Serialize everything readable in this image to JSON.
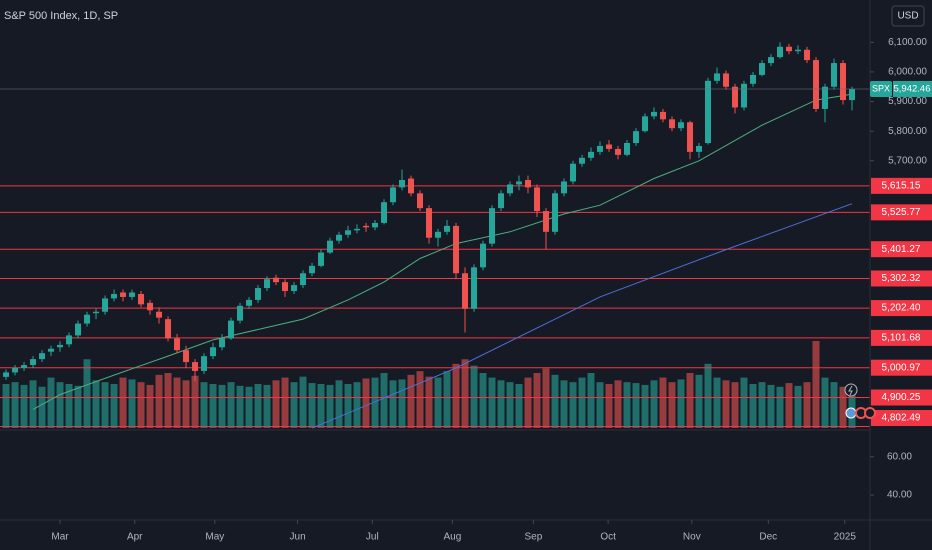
{
  "chart_data": {
    "type": "candlestick",
    "title": "S&P 500 Index, 1D, SP",
    "currency": "USD",
    "symbol": "SPX",
    "last_price": {
      "value": 5942.46,
      "label": "5,942.46"
    },
    "up_color": "#26a69a",
    "down_color": "#ef5350",
    "ylim": [
      4800,
      6243
    ],
    "xlim": [
      -0.67,
      96
    ],
    "yticks": [
      {
        "value": 6100,
        "label": "6,100.00"
      },
      {
        "value": 6000,
        "label": "6,000.00"
      },
      {
        "value": 5900,
        "label": "5,900.00"
      },
      {
        "value": 5800,
        "label": "5,800.00"
      },
      {
        "value": 5700,
        "label": "5,700.00"
      }
    ],
    "xticks": [
      {
        "value": 6,
        "label": "Mar"
      },
      {
        "value": 14.3,
        "label": "Apr"
      },
      {
        "value": 23.2,
        "label": "May"
      },
      {
        "value": 32.4,
        "label": "Jun"
      },
      {
        "value": 40.7,
        "label": "Jul"
      },
      {
        "value": 49.6,
        "label": "Aug"
      },
      {
        "value": 58.6,
        "label": "Sep"
      },
      {
        "value": 66.9,
        "label": "Oct"
      },
      {
        "value": 76.2,
        "label": "Nov"
      },
      {
        "value": 84.7,
        "label": "Dec"
      },
      {
        "value": 93.2,
        "label": "2025"
      }
    ],
    "levels_color": "#f23645",
    "levels": [
      {
        "value": 5615.15,
        "label": "5,615.15"
      },
      {
        "value": 5525.77,
        "label": "5,525.77"
      },
      {
        "value": 5401.27,
        "label": "5,401.27"
      },
      {
        "value": 5302.32,
        "label": "5,302.32"
      },
      {
        "value": 5202.4,
        "label": "5,202.40"
      },
      {
        "value": 5101.68,
        "label": "5,101.68"
      },
      {
        "value": 5000.97,
        "label": "5,000.97"
      },
      {
        "value": 4900.25,
        "label": "4,900.25"
      },
      {
        "value": 4802.49,
        "label": "4,802.49"
      }
    ],
    "candles": [
      [
        4970,
        4995,
        4960,
        4985
      ],
      [
        4985,
        5010,
        4975,
        5000
      ],
      [
        5000,
        5020,
        4990,
        5010
      ],
      [
        5010,
        5040,
        5000,
        5030
      ],
      [
        5030,
        5060,
        5020,
        5050
      ],
      [
        5055,
        5075,
        5040,
        5065
      ],
      [
        5070,
        5090,
        5055,
        5078
      ],
      [
        5080,
        5120,
        5070,
        5110
      ],
      [
        5110,
        5160,
        5100,
        5150
      ],
      [
        5150,
        5190,
        5140,
        5180
      ],
      [
        5185,
        5200,
        5165,
        5190
      ],
      [
        5190,
        5245,
        5180,
        5235
      ],
      [
        5235,
        5265,
        5225,
        5250
      ],
      [
        5255,
        5265,
        5225,
        5240
      ],
      [
        5240,
        5265,
        5230,
        5255
      ],
      [
        5250,
        5260,
        5205,
        5215
      ],
      [
        5220,
        5230,
        5180,
        5195
      ],
      [
        5190,
        5205,
        5150,
        5170
      ],
      [
        5165,
        5175,
        5090,
        5100
      ],
      [
        5100,
        5115,
        5050,
        5060
      ],
      [
        5060,
        5075,
        5000,
        5020
      ],
      [
        5020,
        5030,
        4955,
        4990
      ],
      [
        4990,
        5050,
        4980,
        5040
      ],
      [
        5040,
        5085,
        5030,
        5070
      ],
      [
        5070,
        5115,
        5060,
        5100
      ],
      [
        5100,
        5170,
        5095,
        5160
      ],
      [
        5160,
        5220,
        5150,
        5210
      ],
      [
        5210,
        5240,
        5200,
        5230
      ],
      [
        5230,
        5280,
        5220,
        5270
      ],
      [
        5270,
        5310,
        5260,
        5300
      ],
      [
        5305,
        5315,
        5280,
        5290
      ],
      [
        5290,
        5300,
        5240,
        5260
      ],
      [
        5260,
        5290,
        5250,
        5280
      ],
      [
        5280,
        5330,
        5270,
        5320
      ],
      [
        5320,
        5355,
        5310,
        5345
      ],
      [
        5345,
        5400,
        5340,
        5390
      ],
      [
        5390,
        5440,
        5385,
        5430
      ],
      [
        5430,
        5460,
        5420,
        5450
      ],
      [
        5450,
        5480,
        5440,
        5465
      ],
      [
        5465,
        5485,
        5455,
        5470
      ],
      [
        5480,
        5490,
        5460,
        5475
      ],
      [
        5475,
        5500,
        5465,
        5490
      ],
      [
        5490,
        5570,
        5485,
        5560
      ],
      [
        5560,
        5620,
        5550,
        5610
      ],
      [
        5610,
        5670,
        5600,
        5635
      ],
      [
        5640,
        5650,
        5580,
        5590
      ],
      [
        5590,
        5600,
        5530,
        5540
      ],
      [
        5540,
        5550,
        5420,
        5440
      ],
      [
        5440,
        5470,
        5410,
        5460
      ],
      [
        5460,
        5500,
        5450,
        5480
      ],
      [
        5480,
        5490,
        5300,
        5320
      ],
      [
        5320,
        5340,
        5120,
        5200
      ],
      [
        5200,
        5350,
        5190,
        5340
      ],
      [
        5340,
        5430,
        5330,
        5420
      ],
      [
        5420,
        5550,
        5410,
        5540
      ],
      [
        5540,
        5600,
        5530,
        5590
      ],
      [
        5590,
        5630,
        5580,
        5620
      ],
      [
        5620,
        5650,
        5600,
        5630
      ],
      [
        5635,
        5650,
        5590,
        5610
      ],
      [
        5610,
        5620,
        5510,
        5530
      ],
      [
        5530,
        5540,
        5400,
        5460
      ],
      [
        5460,
        5600,
        5450,
        5590
      ],
      [
        5590,
        5640,
        5580,
        5630
      ],
      [
        5630,
        5700,
        5620,
        5690
      ],
      [
        5690,
        5720,
        5680,
        5710
      ],
      [
        5710,
        5745,
        5700,
        5730
      ],
      [
        5730,
        5765,
        5720,
        5750
      ],
      [
        5755,
        5770,
        5730,
        5740
      ],
      [
        5740,
        5750,
        5705,
        5720
      ],
      [
        5720,
        5770,
        5715,
        5760
      ],
      [
        5760,
        5810,
        5750,
        5800
      ],
      [
        5800,
        5860,
        5795,
        5850
      ],
      [
        5850,
        5880,
        5840,
        5865
      ],
      [
        5865,
        5875,
        5830,
        5840
      ],
      [
        5840,
        5850,
        5800,
        5810
      ],
      [
        5810,
        5840,
        5800,
        5830
      ],
      [
        5830,
        5835,
        5705,
        5730
      ],
      [
        5730,
        5760,
        5710,
        5750
      ],
      [
        5760,
        5980,
        5755,
        5970
      ],
      [
        5970,
        6015,
        5960,
        5995
      ],
      [
        5995,
        6005,
        5940,
        5950
      ],
      [
        5950,
        5960,
        5860,
        5880
      ],
      [
        5880,
        5970,
        5870,
        5960
      ],
      [
        5960,
        6000,
        5950,
        5990
      ],
      [
        5990,
        6040,
        5985,
        6030
      ],
      [
        6030,
        6060,
        6020,
        6050
      ],
      [
        6050,
        6100,
        6045,
        6085
      ],
      [
        6085,
        6095,
        6060,
        6070
      ],
      [
        6070,
        6090,
        6060,
        6075
      ],
      [
        6075,
        6085,
        6030,
        6040
      ],
      [
        6040,
        6050,
        5865,
        5875
      ],
      [
        5875,
        5960,
        5830,
        5950
      ],
      [
        5950,
        6045,
        5940,
        6030
      ],
      [
        6030,
        6040,
        5890,
        5905
      ],
      [
        5905,
        5950,
        5870,
        5942.46
      ]
    ],
    "vlim": [
      0,
      120
    ],
    "volume": [
      48,
      50,
      47,
      52,
      45,
      55,
      50,
      48,
      46,
      75,
      52,
      50,
      48,
      55,
      53,
      50,
      47,
      58,
      60,
      55,
      52,
      57,
      50,
      48,
      47,
      50,
      46,
      45,
      48,
      47,
      52,
      55,
      50,
      56,
      49,
      48,
      47,
      52,
      48,
      50,
      54,
      55,
      60,
      52,
      53,
      58,
      62,
      56,
      55,
      62,
      70,
      75,
      68,
      60,
      55,
      52,
      50,
      48,
      55,
      60,
      65,
      58,
      52,
      50,
      55,
      60,
      50,
      48,
      52,
      50,
      49,
      47,
      52,
      55,
      50,
      53,
      60,
      58,
      70,
      55,
      52,
      50,
      55,
      48,
      50,
      47,
      45,
      49,
      46,
      50,
      95,
      55,
      50,
      45,
      40
    ],
    "ma_fast": {
      "color": "#4caf80",
      "x": [
        3,
        6,
        12,
        18,
        23,
        28,
        33,
        38,
        42,
        46,
        50,
        56,
        62,
        66,
        72,
        77,
        84,
        90,
        94
      ],
      "values": [
        4860,
        4910,
        4976,
        5040,
        5095,
        5130,
        5165,
        5230,
        5290,
        5370,
        5420,
        5460,
        5520,
        5550,
        5640,
        5700,
        5820,
        5905,
        5925
      ]
    },
    "ma_slow": {
      "color": "#4f6fd6",
      "x": [
        34,
        50,
        66,
        80,
        94
      ],
      "values": [
        4797,
        5000,
        5240,
        5400,
        5555
      ]
    },
    "lower_lim": [
      27,
      74
    ],
    "lower_ticks": [
      {
        "value": 60,
        "label": "60.00"
      },
      {
        "value": 40,
        "label": "40.00"
      }
    ]
  }
}
